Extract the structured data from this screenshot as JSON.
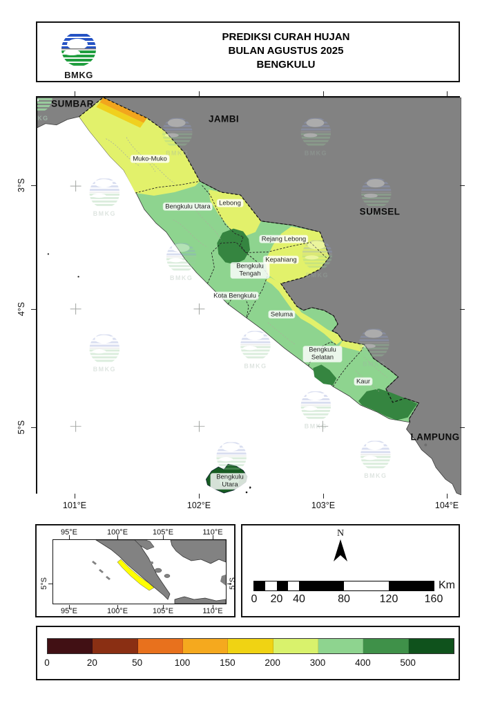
{
  "header": {
    "logo_text": "BMKG",
    "title_lines": [
      "PREDIKSI CURAH HUJAN",
      "BULAN AGUSTUS 2025",
      "BENGKULU"
    ]
  },
  "map": {
    "neighbor_labels": {
      "sumbar": "SUMBAR",
      "jambi": "JAMBI",
      "sumsel": "SUMSEL",
      "lampung": "LAMPUNG"
    },
    "region_labels": {
      "mukomuko": "Muko-Muko",
      "bengkulu_utara": "Bengkulu Utara",
      "lebong": "Lebong",
      "rejang_lebong": "Rejang Lebong",
      "kepahiang": "Kepahiang",
      "bengkulu_tengah": "Bengkulu Tengah",
      "kota_bengkulu": "Kota Bengkulu",
      "seluma": "Seluma",
      "bengkulu_selatan": "Bengkulu Selatan",
      "kaur": "Kaur",
      "enggano_island": "Bengkulu Utara"
    },
    "lat_labels": [
      "3°S",
      "4°S",
      "5°S"
    ],
    "lon_labels": [
      "101°E",
      "102°E",
      "103°E",
      "104°E"
    ],
    "watermark_text": "BMKG"
  },
  "inset": {
    "lon_labels": [
      "95°E",
      "100°E",
      "105°E",
      "110°E"
    ],
    "lat_label": "5°S"
  },
  "scalebar": {
    "north_label": "N",
    "tick_labels": [
      "0",
      "20",
      "40",
      "80",
      "120",
      "160"
    ],
    "unit_label": "Km"
  },
  "legend": {
    "boundary_labels": [
      "0",
      "20",
      "50",
      "100",
      "150",
      "200",
      "300",
      "400",
      "500"
    ],
    "colors": [
      "#411014",
      "#8a2f13",
      "#e8711d",
      "#f5a91e",
      "#f0d313",
      "#d9f26c",
      "#8ed48f",
      "#3f9149",
      "#0f521c"
    ]
  },
  "colors": {
    "neighbor_land": "#828282",
    "sea": "#ffffff",
    "map_yellow": "#e2f16b",
    "map_green": "#8ed48f",
    "map_green_mid": "#3f9149",
    "map_green_dark": "#358540",
    "map_green_darkest": "#175c22",
    "strip_orange": "#f2a51d",
    "strip_gold": "#f0d01e",
    "inset_highlight": "#ffff00"
  }
}
